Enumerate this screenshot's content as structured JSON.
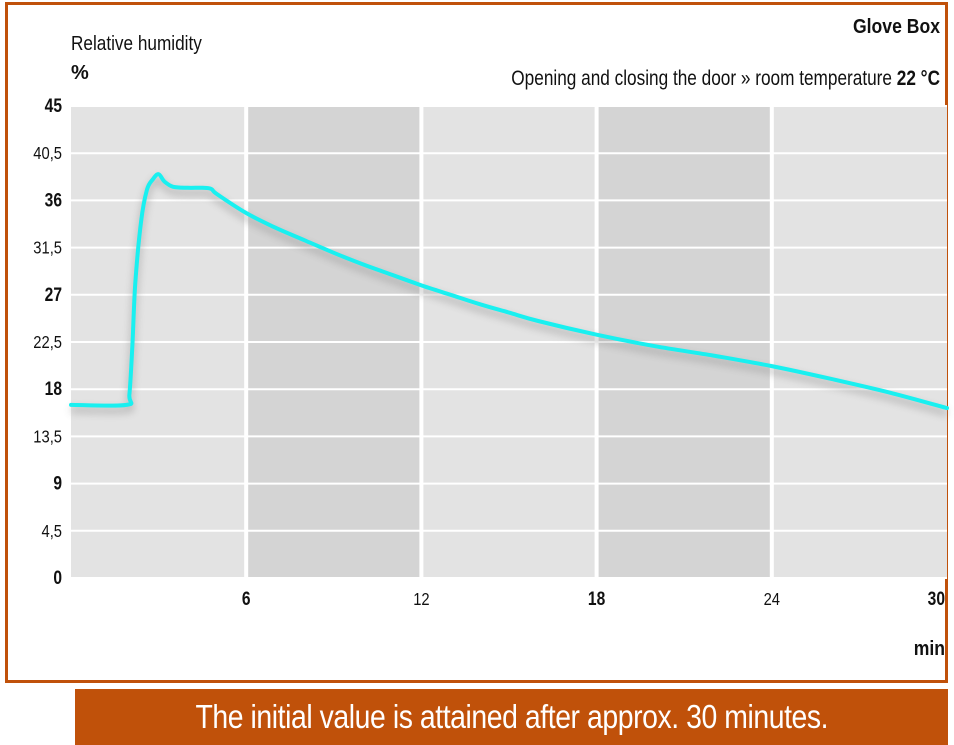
{
  "chart_data": {
    "type": "line",
    "title": "Glove Box",
    "subtitle_prefix": "Opening and closing the door » room temperature",
    "subtitle_value": "22 °C",
    "ylabel": "Relative humidity",
    "yunit": "%",
    "xlabel": "min",
    "xlim": [
      0,
      30
    ],
    "ylim": [
      0,
      45
    ],
    "yticks": [
      "45",
      "40,5",
      "36",
      "31,5",
      "27",
      "22,5",
      "18",
      "13,5",
      "9",
      "4,5",
      "0"
    ],
    "xticks": [
      "6",
      "12",
      "18",
      "24",
      "30"
    ],
    "series": [
      {
        "color": "#19f0f0",
        "x": [
          0,
          1.9,
          2.0,
          2.1,
          2.2,
          2.4,
          2.6,
          2.8,
          3.0,
          3.2,
          3.5,
          4.0,
          4.5,
          4.8,
          5.0,
          6.0,
          7.0,
          8.0,
          9.0,
          10.0,
          11.0,
          12.0,
          13.0,
          14.0,
          15.0,
          16.0,
          18.0,
          20.0,
          22.0,
          24.0,
          26.0,
          28.0,
          30.0
        ],
        "y": [
          16.5,
          16.5,
          17.5,
          22.0,
          28.0,
          34.0,
          37.0,
          38.0,
          38.5,
          37.8,
          37.3,
          37.2,
          37.2,
          37.1,
          36.6,
          34.8,
          33.4,
          32.2,
          31.0,
          29.9,
          28.9,
          27.9,
          27.0,
          26.1,
          25.3,
          24.5,
          23.2,
          22.1,
          21.2,
          20.2,
          19.0,
          17.7,
          16.2
        ]
      }
    ],
    "grid": true
  },
  "footer": {
    "caption": "The initial value is attained after approx. 30 minutes."
  }
}
